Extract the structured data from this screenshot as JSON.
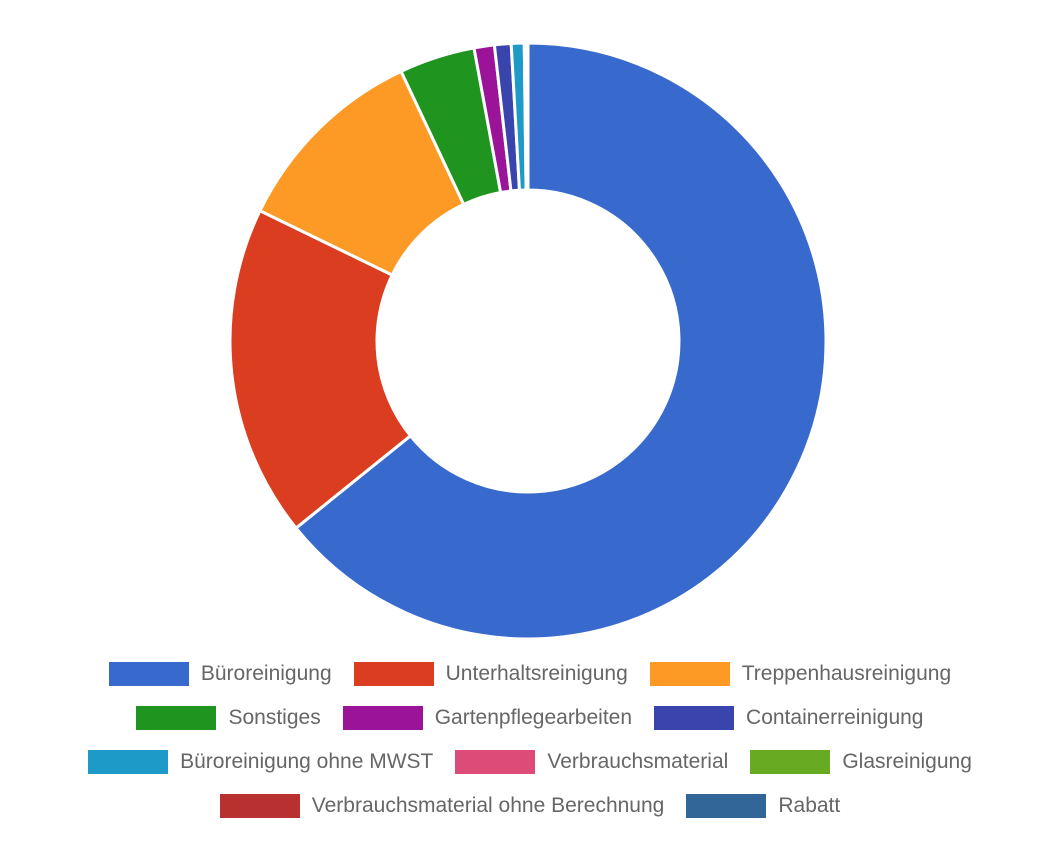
{
  "chart_data": {
    "type": "pie",
    "donut": true,
    "legend_position": "bottom",
    "slices": [
      {
        "label": "Büroreinigung",
        "value": 64.2,
        "color": "#3869cc"
      },
      {
        "label": "Unterhaltsreinigung",
        "value": 18.0,
        "color": "#db3d20"
      },
      {
        "label": "Treppenhausreinigung",
        "value": 10.8,
        "color": "#fd9a25"
      },
      {
        "label": "Sonstiges",
        "value": 4.1,
        "color": "#1f941e"
      },
      {
        "label": "Gartenpflegearbeiten",
        "value": 1.1,
        "color": "#9a1399"
      },
      {
        "label": "Containerreinigung",
        "value": 0.9,
        "color": "#3a44ad"
      },
      {
        "label": "Büroreinigung ohne MWST",
        "value": 0.7,
        "color": "#1d9ac7"
      },
      {
        "label": "Verbrauchsmaterial",
        "value": 0.1,
        "color": "#dd4c78"
      },
      {
        "label": "Glasreinigung",
        "value": 0.05,
        "color": "#67ab22"
      },
      {
        "label": "Verbrauchsmaterial ohne Berechnung",
        "value": 0.03,
        "color": "#b93030"
      },
      {
        "label": "Rabatt",
        "value": 0.02,
        "color": "#326598"
      }
    ]
  }
}
